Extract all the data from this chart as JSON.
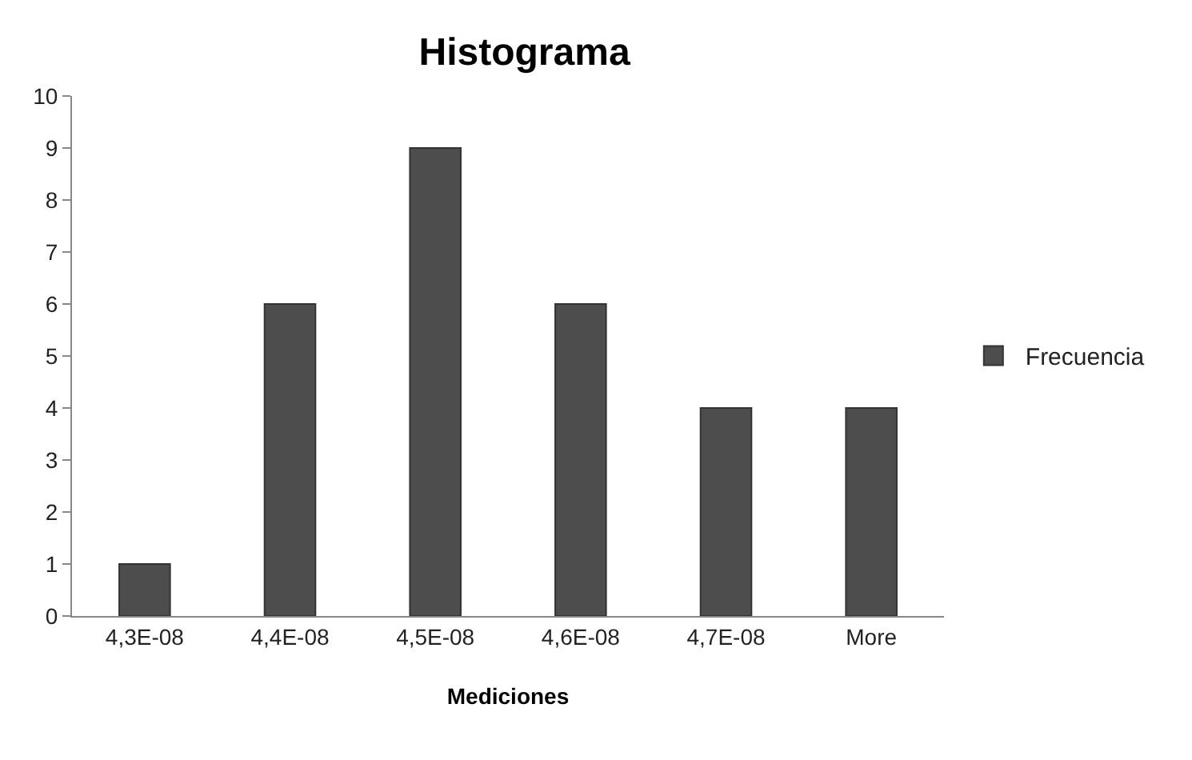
{
  "chart_data": {
    "type": "bar",
    "title": "Histograma",
    "xlabel": "Mediciones",
    "categories": [
      "4,3E-08",
      "4,4E-08",
      "4,5E-08",
      "4,6E-08",
      "4,7E-08",
      "More"
    ],
    "series": [
      {
        "name": "Frecuencia",
        "color": "#4d4d4d",
        "values": [
          1,
          6,
          9,
          6,
          4,
          4
        ]
      }
    ],
    "ylim": [
      0,
      10
    ],
    "yticks": [
      0,
      1,
      2,
      3,
      4,
      5,
      6,
      7,
      8,
      9,
      10
    ],
    "grid": false,
    "legend": "right"
  }
}
